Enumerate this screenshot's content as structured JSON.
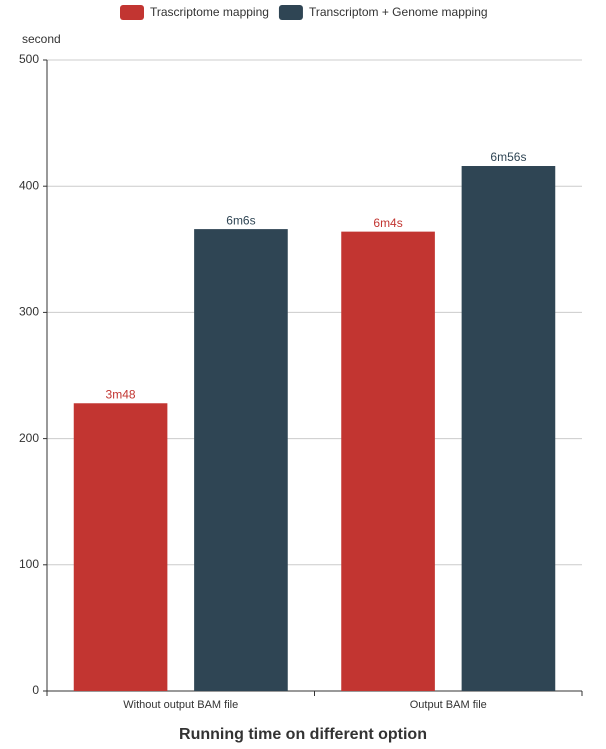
{
  "chart_data": {
    "type": "bar",
    "title": "Running time on different option",
    "y_label": "second",
    "categories": [
      "Without output BAM file",
      "Output BAM file"
    ],
    "series": [
      {
        "name": "Trascriptome mapping",
        "color": "#c23531",
        "values": [
          228,
          364
        ],
        "value_labels": [
          "3m48",
          "6m4s"
        ]
      },
      {
        "name": "Transcriptom + Genome mapping",
        "color": "#2f4554",
        "values": [
          366,
          416
        ],
        "value_labels": [
          "6m6s",
          "6m56s"
        ]
      }
    ],
    "ylim": [
      0,
      500
    ],
    "yticks": [
      0,
      100,
      200,
      300,
      400,
      500
    ],
    "grid": true,
    "legend": "top"
  }
}
